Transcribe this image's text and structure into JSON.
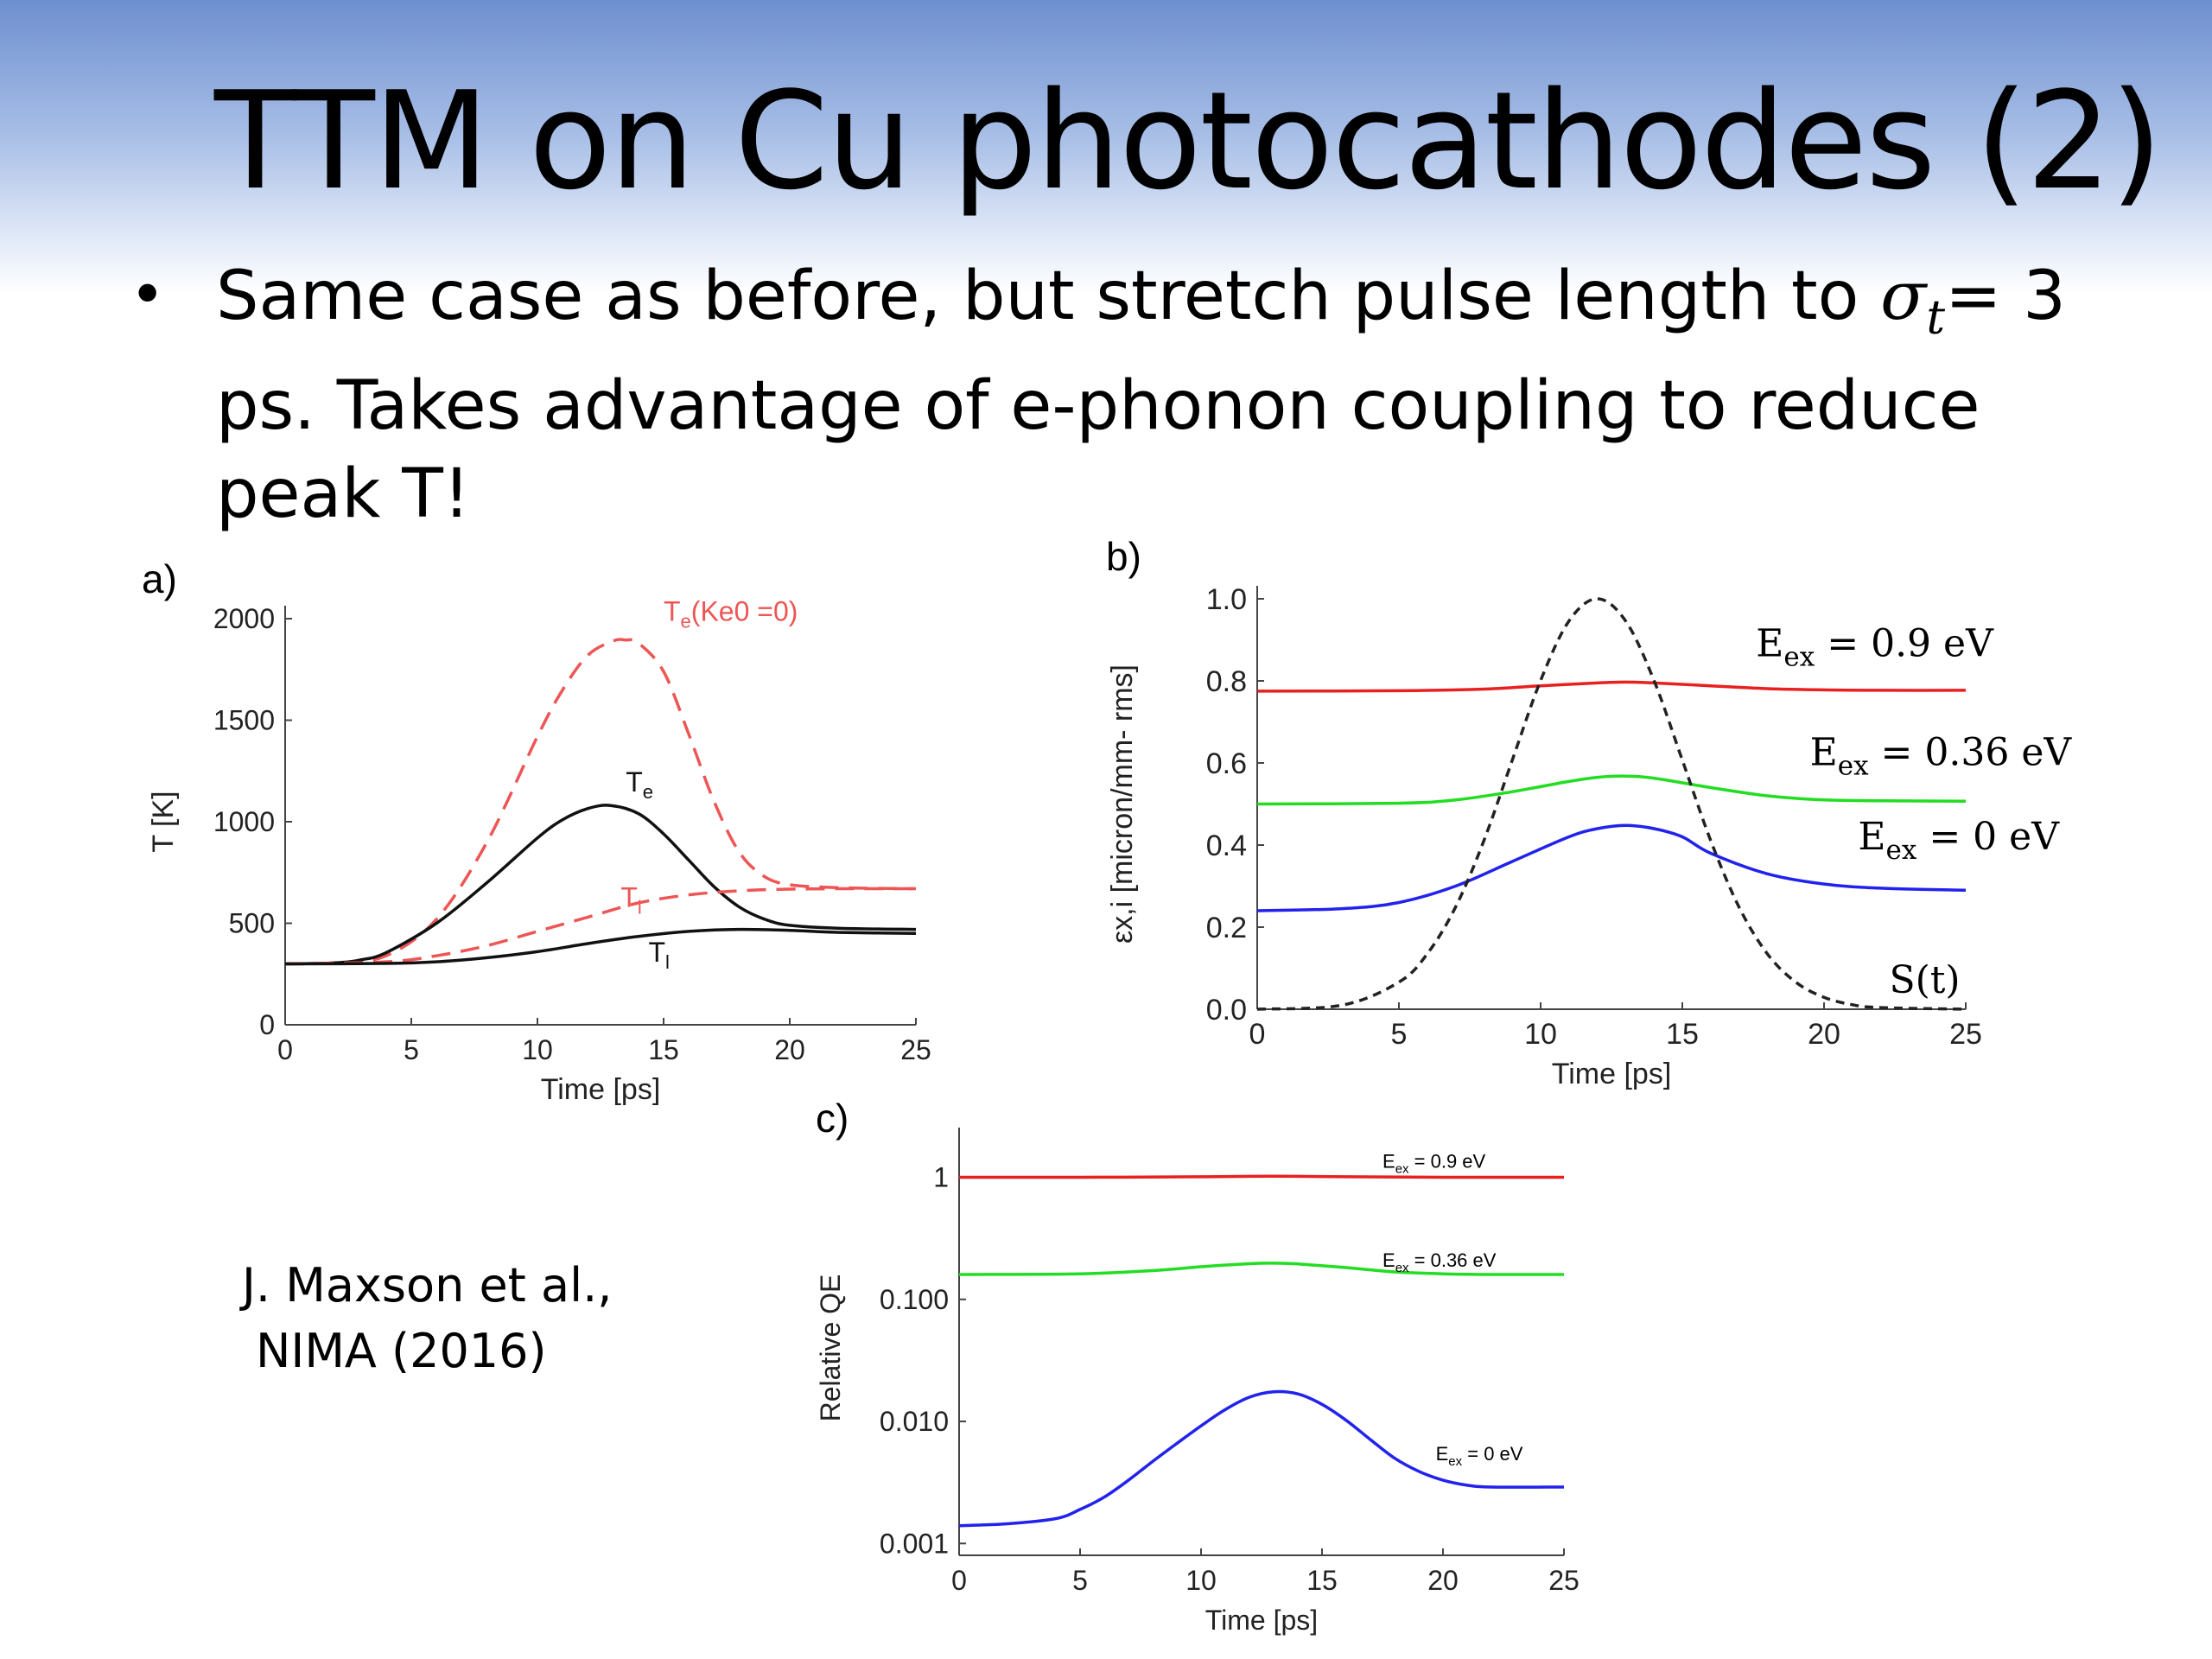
{
  "slide": {
    "title": "TTM on Cu photocathodes (2)",
    "bullet": {
      "symbol": "•",
      "prefix": "Same case as before, but stretch pulse length to ",
      "sigma": "σ",
      "sigma_sub": "t",
      "suffix": "= 3 ps. Takes advantage of e-phonon coupling to reduce peak T!"
    },
    "citation": [
      "J. Maxson et al.,",
      "NIMA (2016)"
    ]
  },
  "chart_data": [
    {
      "panel": "a)",
      "type": "line",
      "xlabel": "Time [ps]",
      "ylabel": "T [K]",
      "xlim": [
        0,
        25
      ],
      "ylim": [
        0,
        2000
      ],
      "xticks": [
        0,
        5,
        10,
        15,
        20,
        25
      ],
      "yticks": [
        0,
        500,
        1000,
        1500,
        2000
      ],
      "series": [
        {
          "name": "Te(Ke0 =0)",
          "color": "#ee5555",
          "dashed": true,
          "x": [
            0,
            2,
            4,
            6,
            8,
            10,
            11,
            12,
            13,
            13.5,
            14,
            15,
            16,
            17,
            18,
            19,
            20,
            22,
            25
          ],
          "y": [
            300,
            305,
            340,
            520,
            900,
            1420,
            1650,
            1820,
            1890,
            1895,
            1880,
            1740,
            1430,
            1100,
            850,
            730,
            690,
            675,
            670
          ]
        },
        {
          "name": "Te",
          "color": "#111111",
          "dashed": false,
          "x": [
            0,
            2,
            3,
            4,
            6,
            8,
            10,
            11,
            12,
            12.9,
            14,
            15,
            16,
            17,
            18,
            19,
            20,
            22,
            25
          ],
          "y": [
            300,
            305,
            320,
            355,
            500,
            700,
            920,
            1010,
            1065,
            1080,
            1040,
            940,
            810,
            680,
            580,
            520,
            490,
            475,
            470
          ]
        },
        {
          "name": "Tl",
          "color": "#ee5555",
          "dashed": true,
          "x": [
            0,
            4,
            6,
            8,
            10,
            12,
            14,
            16,
            18,
            20,
            22,
            25
          ],
          "y": [
            300,
            310,
            340,
            390,
            460,
            530,
            600,
            640,
            660,
            668,
            670,
            670
          ]
        },
        {
          "name": "Tl",
          "color": "#111111",
          "dashed": false,
          "x": [
            0,
            4,
            6,
            8,
            10,
            12,
            14,
            16,
            18,
            20,
            22,
            25
          ],
          "y": [
            300,
            302,
            310,
            330,
            360,
            400,
            435,
            460,
            470,
            465,
            455,
            450
          ]
        }
      ],
      "annotations": [
        {
          "text": "Te(Ke0 =0)",
          "at": [
            15,
            1990
          ],
          "color": "#ee5555"
        },
        {
          "text": "Te",
          "at": [
            13.5,
            1150
          ],
          "color": "#111111"
        },
        {
          "text": "Tl",
          "at": [
            13.3,
            580
          ],
          "color": "#ee5555"
        },
        {
          "text": "Tl",
          "at": [
            14.4,
            310
          ],
          "color": "#111111"
        }
      ]
    },
    {
      "panel": "b)",
      "type": "line",
      "xlabel": "Time [ps]",
      "ylabel": "εx,i [micron/mm- rms]",
      "xlim": [
        0,
        25
      ],
      "ylim": [
        0,
        1.0
      ],
      "xticks": [
        0,
        5,
        10,
        15,
        20,
        25
      ],
      "yticks": [
        0.0,
        0.2,
        0.4,
        0.6,
        0.8,
        1.0
      ],
      "series": [
        {
          "name": "Eex = 0.9 eV",
          "color": "#e82020",
          "dashed": false,
          "x": [
            0,
            5,
            8,
            10,
            12,
            13,
            14,
            16,
            18,
            20,
            22,
            25
          ],
          "y": [
            0.775,
            0.776,
            0.78,
            0.788,
            0.795,
            0.797,
            0.795,
            0.788,
            0.781,
            0.778,
            0.777,
            0.777
          ]
        },
        {
          "name": "Eex = 0.36 eV",
          "color": "#22dd22",
          "dashed": false,
          "x": [
            0,
            5,
            7,
            9,
            11,
            12,
            13,
            14,
            16,
            18,
            20,
            22,
            25
          ],
          "y": [
            0.5,
            0.502,
            0.51,
            0.53,
            0.555,
            0.565,
            0.568,
            0.563,
            0.54,
            0.52,
            0.51,
            0.508,
            0.507
          ]
        },
        {
          "name": "Eex = 0 eV",
          "color": "#2222ee",
          "dashed": false,
          "x": [
            0,
            3,
            5,
            7,
            9,
            11,
            12,
            13,
            14,
            15,
            16,
            18,
            20,
            22,
            25
          ],
          "y": [
            0.24,
            0.245,
            0.26,
            0.3,
            0.36,
            0.42,
            0.44,
            0.448,
            0.44,
            0.42,
            0.38,
            0.33,
            0.305,
            0.295,
            0.29
          ]
        },
        {
          "name": "S(t)",
          "color": "#222222",
          "dashed": true,
          "x": [
            0,
            3,
            5,
            6,
            7,
            8,
            9,
            10,
            11,
            12,
            13,
            14,
            15,
            16,
            17,
            18,
            19,
            20,
            21,
            22,
            25
          ],
          "y": [
            0,
            0.01,
            0.066,
            0.135,
            0.249,
            0.411,
            0.607,
            0.801,
            0.946,
            1.0,
            0.946,
            0.801,
            0.607,
            0.411,
            0.249,
            0.135,
            0.066,
            0.029,
            0.011,
            0.004,
            0
          ]
        }
      ],
      "annotations": [
        {
          "text": "Eex = 0.9 eV",
          "at": [
            17.6,
            0.86
          ],
          "color": "#000000"
        },
        {
          "text": "Eex = 0.36 eV",
          "at": [
            19.5,
            0.595
          ],
          "color": "#000000"
        },
        {
          "text": "Eex = 0 eV",
          "at": [
            21.2,
            0.39
          ],
          "color": "#000000"
        },
        {
          "text": "S(t)",
          "at": [
            22.3,
            0.04
          ],
          "color": "#000000"
        }
      ]
    },
    {
      "panel": "c)",
      "type": "line",
      "log_y": true,
      "xlabel": "Time [ps]",
      "ylabel": "Relative QE",
      "xlim": [
        0,
        25
      ],
      "ylim": [
        0.0008,
        2
      ],
      "xticks": [
        0,
        5,
        10,
        15,
        20,
        25
      ],
      "yticks": [
        0.001,
        0.01,
        0.1,
        1
      ],
      "ytick_labels": [
        "0.001",
        "0.010",
        "0.100",
        "1"
      ],
      "series": [
        {
          "name": "Eex = 0.9 eV",
          "color": "#e82020",
          "dashed": false,
          "x": [
            0,
            5,
            10,
            13,
            16,
            20,
            25
          ],
          "y": [
            1.0,
            1.0,
            1.01,
            1.02,
            1.01,
            1.0,
            1.0
          ]
        },
        {
          "name": "Eex = 0.36 eV",
          "color": "#22dd22",
          "dashed": false,
          "x": [
            0,
            5,
            8,
            10,
            12,
            13,
            14,
            16,
            18,
            20,
            22,
            25
          ],
          "y": [
            0.16,
            0.162,
            0.172,
            0.185,
            0.196,
            0.198,
            0.195,
            0.182,
            0.168,
            0.162,
            0.16,
            0.16
          ]
        },
        {
          "name": "Eex = 0 eV",
          "color": "#2222ee",
          "dashed": false,
          "x": [
            0,
            2,
            4,
            5,
            6,
            7,
            8,
            9,
            10,
            11,
            12,
            13,
            14,
            15,
            16,
            17,
            18,
            19,
            20,
            21,
            22,
            25
          ],
          "y": [
            0.0014,
            0.00145,
            0.0016,
            0.0019,
            0.0024,
            0.0033,
            0.0047,
            0.0066,
            0.0092,
            0.0125,
            0.0158,
            0.0175,
            0.0168,
            0.0138,
            0.0102,
            0.0071,
            0.005,
            0.0039,
            0.0033,
            0.003,
            0.0029,
            0.0029
          ]
        }
      ],
      "annotations": [
        {
          "text": "Eex = 0.9 eV",
          "at": [
            17.5,
            1.2
          ],
          "color": "#000000"
        },
        {
          "text": "Eex = 0.36 eV",
          "at": [
            17.5,
            0.185
          ],
          "color": "#000000"
        },
        {
          "text": "Eex = 0 eV",
          "at": [
            19.7,
            0.0048
          ],
          "color": "#000000"
        }
      ]
    }
  ]
}
